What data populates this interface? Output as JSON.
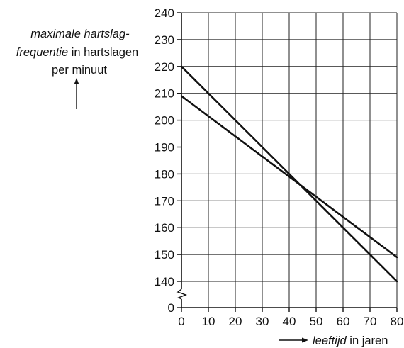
{
  "chart_data": {
    "type": "line",
    "ylabel_line1": "maximale hartslag-",
    "ylabel_line2_italic": "frequentie",
    "ylabel_line2_rest": " in hartslagen",
    "ylabel_line3": "per minuut",
    "xlabel_italic": "leeftijd",
    "xlabel_rest": " in jaren",
    "x_ticks": [
      "0",
      "10",
      "20",
      "30",
      "40",
      "50",
      "60",
      "70",
      "80"
    ],
    "y_ticks": [
      "0",
      "140",
      "150",
      "160",
      "170",
      "180",
      "190",
      "200",
      "210",
      "220",
      "230",
      "240"
    ],
    "xlim": [
      0,
      80
    ],
    "ylim": [
      140,
      240
    ],
    "y_axis_break": true,
    "grid": true,
    "series": [
      {
        "x": [
          0,
          80
        ],
        "y": [
          220,
          140
        ]
      },
      {
        "x": [
          0,
          80
        ],
        "y": [
          209,
          149
        ]
      }
    ]
  }
}
